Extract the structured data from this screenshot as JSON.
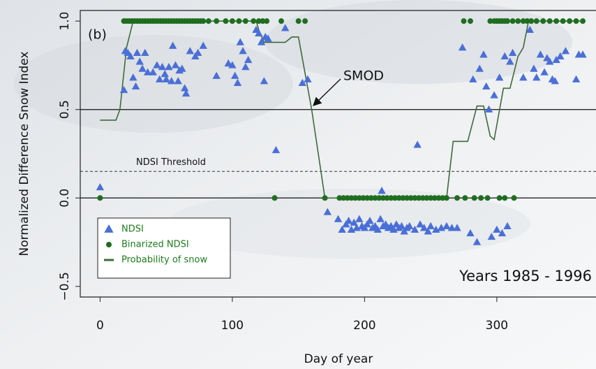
{
  "chart_data": {
    "type": "scatter",
    "xlabel": "Day of year",
    "ylabel": "Normalized Difference Snow Index",
    "xlim": [
      -15,
      375
    ],
    "ylim": [
      -0.56,
      1.06
    ],
    "xticks": [
      0,
      100,
      200,
      300
    ],
    "yticks": [
      {
        "value": 1,
        "label": "1.0"
      },
      0.5,
      {
        "value": 0,
        "label": "0.0"
      },
      {
        "value": -0.5,
        "label": "−0.5"
      }
    ],
    "reference_lines": [
      0,
      0.5
    ],
    "threshold": 0.15,
    "annotations": {
      "panel": "(b)",
      "smod": "SMOD",
      "threshold_label": "NDSI Threshold",
      "years": "Years 1985 - 1996"
    },
    "legend": "bottom-left",
    "series": [
      {
        "name": "NDSI",
        "color": "#4a6fd6",
        "marker": "triangle",
        "x": [
          0,
          18,
          19,
          21,
          23,
          25,
          27,
          28,
          30,
          32,
          34,
          36,
          40,
          43,
          45,
          47,
          49,
          50,
          52,
          54,
          55,
          57,
          59,
          60,
          62,
          64,
          65,
          68,
          72,
          74,
          78,
          88,
          97,
          100,
          102,
          104,
          106,
          108,
          110,
          112,
          118,
          120,
          122,
          124,
          125,
          127,
          133,
          140,
          153,
          157,
          172,
          180,
          183,
          186,
          188,
          190,
          192,
          194,
          196,
          198,
          200,
          202,
          204,
          206,
          208,
          210,
          212,
          213,
          214,
          216,
          218,
          220,
          222,
          224,
          226,
          228,
          230,
          232,
          234,
          238,
          240,
          242,
          245,
          248,
          250,
          254,
          258,
          262,
          266,
          270,
          274,
          280,
          282,
          285,
          287,
          290,
          292,
          294,
          296,
          298,
          300,
          302,
          304,
          306,
          308,
          310,
          312,
          320,
          325,
          328,
          330,
          333,
          336,
          338,
          340,
          342,
          344,
          345,
          348,
          352,
          360,
          362,
          365
        ],
        "values": [
          0.06,
          0.61,
          0.83,
          0.82,
          0.8,
          0.68,
          0.63,
          0.82,
          0.77,
          0.73,
          0.82,
          0.71,
          0.71,
          0.75,
          0.67,
          0.74,
          0.7,
          0.67,
          0.74,
          0.66,
          0.86,
          0.75,
          0.66,
          0.72,
          0.73,
          0.62,
          0.59,
          0.83,
          0.8,
          0.82,
          0.86,
          0.69,
          0.76,
          0.75,
          0.69,
          0.65,
          0.88,
          0.83,
          0.74,
          0.78,
          0.95,
          0.93,
          0.88,
          0.66,
          0.91,
          0.9,
          0.27,
          0.96,
          0.65,
          0.67,
          -0.08,
          -0.12,
          -0.18,
          -0.15,
          -0.13,
          -0.18,
          -0.14,
          -0.17,
          -0.12,
          -0.16,
          -0.17,
          -0.15,
          -0.13,
          -0.17,
          -0.16,
          -0.18,
          -0.12,
          0.04,
          -0.16,
          -0.15,
          -0.17,
          -0.16,
          -0.18,
          -0.15,
          -0.17,
          -0.16,
          -0.19,
          -0.17,
          -0.16,
          -0.18,
          0.3,
          -0.15,
          -0.17,
          -0.19,
          -0.16,
          -0.18,
          -0.17,
          -0.16,
          -0.17,
          -0.17,
          0.85,
          -0.2,
          0.67,
          -0.25,
          0.73,
          0.81,
          0.63,
          0.5,
          -0.22,
          0.58,
          -0.18,
          0.68,
          -0.2,
          0.8,
          -0.16,
          0.77,
          0.82,
          0.68,
          0.95,
          0.73,
          0.68,
          0.81,
          0.71,
          0.79,
          0.77,
          0.67,
          0.66,
          0.78,
          0.8,
          0.83,
          0.67,
          0.81,
          0.81
        ]
      },
      {
        "name": "Binarized NDSI",
        "color": "#1f6e1f",
        "marker": "circle",
        "x": [
          18,
          20,
          22,
          24,
          26,
          28,
          30,
          32,
          34,
          36,
          38,
          40,
          42,
          44,
          46,
          48,
          50,
          52,
          54,
          56,
          58,
          60,
          62,
          64,
          66,
          68,
          70,
          72,
          74,
          76,
          78,
          82,
          88,
          95,
          100,
          105,
          110,
          116,
          120,
          123,
          126,
          137,
          150,
          155,
          275,
          280,
          295,
          298,
          300,
          302,
          304,
          306,
          308,
          312,
          316,
          320,
          323,
          326,
          330,
          335,
          340,
          345,
          350,
          355,
          360,
          365,
          0,
          132,
          170,
          181,
          184,
          187,
          190,
          193,
          196,
          199,
          202,
          205,
          208,
          211,
          214,
          217,
          220,
          223,
          226,
          229,
          232,
          235,
          238,
          241,
          244,
          247,
          250,
          253,
          256,
          259,
          262,
          270,
          276,
          283,
          288,
          293,
          302,
          306,
          313
        ],
        "values": [
          1,
          1,
          1,
          1,
          1,
          1,
          1,
          1,
          1,
          1,
          1,
          1,
          1,
          1,
          1,
          1,
          1,
          1,
          1,
          1,
          1,
          1,
          1,
          1,
          1,
          1,
          1,
          1,
          1,
          1,
          1,
          1,
          1,
          1,
          1,
          1,
          1,
          1,
          1,
          1,
          1,
          1,
          1,
          1,
          1,
          1,
          1,
          1,
          1,
          1,
          1,
          1,
          1,
          1,
          1,
          1,
          1,
          1,
          1,
          1,
          1,
          1,
          1,
          1,
          1,
          1,
          0,
          0,
          0,
          0,
          0,
          0,
          0,
          0,
          0,
          0,
          0,
          0,
          0,
          0,
          0,
          0,
          0,
          0,
          0,
          0,
          0,
          0,
          0,
          0,
          0,
          0,
          0,
          0,
          0,
          0,
          0,
          0,
          0,
          0,
          0,
          0,
          0,
          0,
          0
        ]
      },
      {
        "name": "Probability of snow",
        "color": "#3d6b3d",
        "marker": "line",
        "x": [
          0,
          12,
          15,
          20,
          25,
          118,
          120,
          124,
          140,
          145,
          150,
          160,
          170,
          262,
          267,
          278,
          285,
          290,
          295,
          298,
          305,
          310,
          316,
          320,
          324,
          365
        ],
        "values": [
          0.44,
          0.44,
          0.5,
          0.85,
          1,
          1,
          0.95,
          0.88,
          0.88,
          0.91,
          0.91,
          0.5,
          0,
          0,
          0.32,
          0.32,
          0.52,
          0.52,
          0.35,
          0.33,
          0.62,
          0.62,
          0.8,
          0.85,
          1,
          1
        ]
      }
    ]
  }
}
